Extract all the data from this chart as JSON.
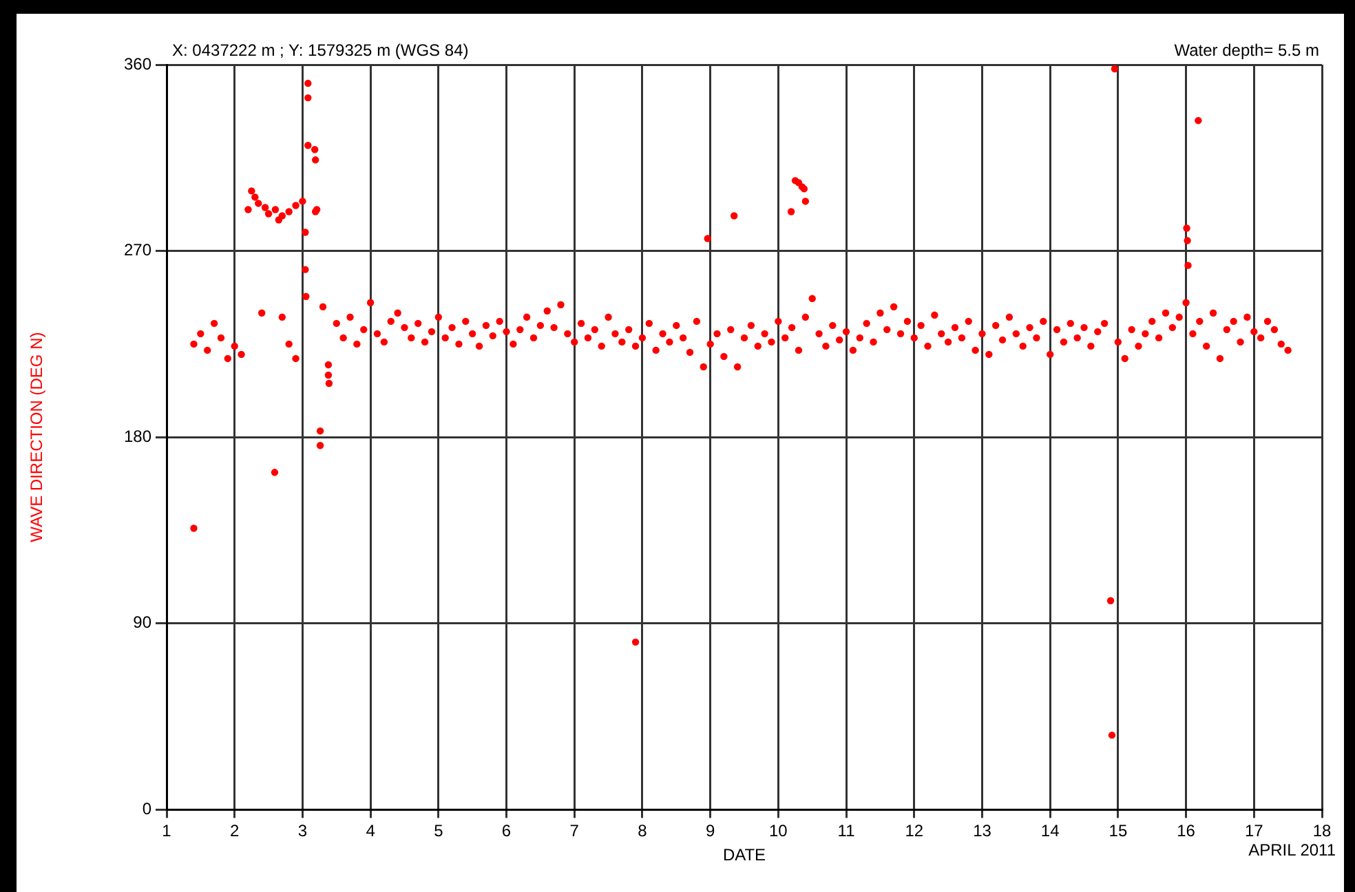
{
  "chart_data": {
    "type": "scatter",
    "xlabel": "DATE",
    "ylabel": "WAVE DIRECTION (DEG N)",
    "annotations": [
      "X: 0437222 m ; Y: 1579325 m (WGS 84)",
      "Water depth= 5.5 m",
      "APRIL 2011"
    ],
    "xlim": [
      1,
      18
    ],
    "xticks": [
      1,
      2,
      3,
      4,
      5,
      6,
      7,
      8,
      9,
      10,
      11,
      12,
      13,
      14,
      15,
      16,
      17,
      18
    ],
    "ylim": [
      0,
      360
    ],
    "yticks": [
      0,
      90,
      180,
      270,
      360
    ],
    "grid": true,
    "legend": false,
    "marker": "circle",
    "series": [
      {
        "color": "#ff0000",
        "x": [
          1.4,
          1.4,
          1.5,
          1.6,
          1.7,
          1.8,
          1.9,
          2.0,
          2.1,
          2.2,
          2.25,
          2.3,
          2.35,
          2.4,
          2.45,
          2.5,
          2.59,
          2.6,
          2.65,
          2.7,
          2.7,
          2.8,
          2.8,
          2.9,
          2.9,
          3.0,
          3.04,
          3.04,
          3.05,
          3.08,
          3.08,
          3.08,
          3.18,
          3.19,
          3.19,
          3.21,
          3.26,
          3.26,
          3.38,
          3.38,
          3.39,
          3.3,
          3.5,
          3.6,
          3.7,
          3.8,
          3.9,
          4.0,
          4.1,
          4.2,
          4.3,
          4.4,
          4.5,
          4.6,
          4.7,
          4.8,
          4.9,
          5.0,
          5.1,
          5.2,
          5.3,
          5.4,
          5.5,
          5.6,
          5.7,
          5.8,
          5.9,
          6.0,
          6.1,
          6.2,
          6.3,
          6.4,
          6.5,
          6.6,
          6.7,
          6.8,
          6.9,
          7.0,
          7.1,
          7.2,
          7.3,
          7.4,
          7.5,
          7.6,
          7.7,
          7.8,
          7.9,
          7.9,
          8.0,
          8.1,
          8.2,
          8.3,
          8.4,
          8.5,
          8.6,
          8.7,
          8.8,
          8.9,
          8.96,
          9.0,
          9.1,
          9.2,
          9.3,
          9.35,
          9.4,
          9.5,
          9.6,
          9.7,
          9.8,
          9.9,
          10.0,
          10.1,
          10.19,
          10.2,
          10.25,
          10.3,
          10.35,
          10.4,
          10.3,
          10.38,
          10.4,
          10.5,
          10.6,
          10.7,
          10.8,
          10.9,
          11.0,
          11.1,
          11.2,
          11.3,
          11.4,
          11.5,
          11.6,
          11.7,
          11.8,
          11.9,
          12.0,
          12.1,
          12.2,
          12.3,
          12.4,
          12.5,
          12.6,
          12.7,
          12.8,
          12.9,
          13.0,
          13.1,
          13.2,
          13.3,
          13.4,
          13.5,
          13.6,
          13.7,
          13.8,
          13.9,
          14.0,
          14.1,
          14.2,
          14.3,
          14.4,
          14.5,
          14.6,
          14.7,
          14.8,
          14.89,
          14.91,
          14.95,
          15.0,
          15.1,
          15.2,
          15.3,
          15.4,
          15.5,
          15.6,
          15.7,
          15.8,
          15.9,
          16.0,
          16.01,
          16.02,
          16.03,
          16.1,
          16.18,
          16.2,
          16.3,
          16.4,
          16.5,
          16.6,
          16.7,
          16.8,
          16.9,
          17.0,
          17.1,
          17.2,
          17.3,
          17.4,
          17.5
        ],
        "values": [
          136,
          225,
          230,
          222,
          235,
          228,
          218,
          224,
          220,
          290,
          299,
          296,
          293,
          240,
          291,
          288,
          163,
          290,
          285,
          287,
          238,
          289,
          225,
          292,
          218,
          294,
          279,
          261,
          248,
          351,
          344,
          321,
          319,
          314,
          289,
          290,
          183,
          176,
          215,
          210,
          206,
          243,
          235,
          228,
          238,
          225,
          232,
          245,
          230,
          226,
          236,
          240,
          233,
          228,
          235,
          226,
          231,
          238,
          228,
          233,
          225,
          236,
          230,
          224,
          234,
          229,
          236,
          231,
          225,
          232,
          238,
          228,
          234,
          241,
          233,
          244,
          230,
          226,
          235,
          228,
          232,
          224,
          238,
          230,
          226,
          232,
          224,
          81,
          228,
          235,
          222,
          230,
          226,
          234,
          228,
          221,
          236,
          214,
          276,
          225,
          230,
          219,
          232,
          287,
          214,
          228,
          234,
          224,
          230,
          226,
          236,
          228,
          289,
          233,
          304,
          222,
          301,
          294,
          303,
          300,
          238,
          247,
          230,
          224,
          234,
          227,
          231,
          222,
          228,
          235,
          226,
          240,
          232,
          243,
          230,
          236,
          228,
          234,
          224,
          239,
          230,
          226,
          233,
          228,
          236,
          222,
          230,
          220,
          234,
          227,
          238,
          230,
          224,
          233,
          228,
          236,
          220,
          232,
          226,
          235,
          228,
          233,
          224,
          231,
          235,
          101,
          36,
          358,
          226,
          218,
          232,
          224,
          230,
          236,
          228,
          240,
          233,
          238,
          245,
          281,
          275,
          263,
          230,
          333,
          236,
          224,
          240,
          218,
          232,
          236,
          226,
          238,
          231,
          228,
          236,
          232,
          225,
          222
        ]
      }
    ]
  }
}
